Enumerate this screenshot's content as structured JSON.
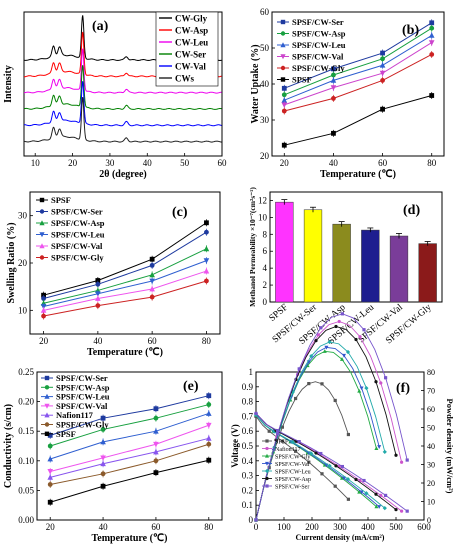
{
  "figure": {
    "chart_data": [
      {
        "id": "a",
        "panel_label": "(a)",
        "type": "line",
        "title": "",
        "xlabel": "2θ (degree)",
        "ylabel": "Intensity",
        "xlim": [
          7,
          60
        ],
        "xticks": [
          10,
          20,
          30,
          40,
          50,
          60
        ],
        "ylim": [
          0,
          7.5
        ],
        "show_y_ticks": false,
        "legend_placement": "top-right",
        "peaks": [
          {
            "x": 14.9,
            "h": 0.55,
            "w": 0.55
          },
          {
            "x": 16.5,
            "h": 0.45,
            "w": 0.6
          },
          {
            "x": 22.7,
            "h": 2.2,
            "w": 0.45
          },
          {
            "x": 34.4,
            "h": 0.18,
            "w": 0.6
          }
        ],
        "series": [
          {
            "name": "CW-Gly",
            "color": "#000000",
            "offset": 5.0
          },
          {
            "name": "CW-Asp",
            "color": "#ff0000",
            "offset": 4.15
          },
          {
            "name": "CW-Leu",
            "color": "#ee00ee",
            "offset": 3.3
          },
          {
            "name": "CW-Ser",
            "color": "#008000",
            "offset": 2.45
          },
          {
            "name": "CW-Val",
            "color": "#0000ff",
            "offset": 1.6
          },
          {
            "name": "CWs",
            "color": "#222222",
            "offset": 0.75
          }
        ]
      },
      {
        "id": "b",
        "panel_label": "(b)",
        "type": "line",
        "xlabel": "Temperature (℃)",
        "ylabel": "Water Uptake (%)",
        "x": [
          20,
          40,
          60,
          80
        ],
        "xlim": [
          15,
          85
        ],
        "xticks": [
          20,
          40,
          60,
          80
        ],
        "ylim": [
          20,
          60
        ],
        "yticks": [
          20,
          30,
          40,
          50,
          60
        ],
        "legend_placement": "top-left",
        "series": [
          {
            "name": "SPSF/CW-Ser",
            "color": "#1e3a9f",
            "marker": "square",
            "values": [
              38.8,
              44.2,
              48.6,
              57.0
            ]
          },
          {
            "name": "SPSF/CW-Asp",
            "color": "#18a040",
            "marker": "circle",
            "values": [
              37.0,
              42.5,
              47.0,
              55.5
            ]
          },
          {
            "name": "SPSF/CW-Leu",
            "color": "#2f5fd0",
            "marker": "triangle",
            "values": [
              35.5,
              41.0,
              45.2,
              53.5
            ]
          },
          {
            "name": "SPSF/CW-Val",
            "color": "#cc44cc",
            "marker": "triangle-down",
            "values": [
              34.2,
              39.0,
              43.0,
              51.5
            ]
          },
          {
            "name": "SPSF/CW-Gly",
            "color": "#cc2222",
            "marker": "circle",
            "values": [
              32.5,
              36.0,
              41.0,
              48.2
            ]
          },
          {
            "name": "SPSF",
            "color": "#000000",
            "marker": "square",
            "values": [
              23.0,
              26.3,
              33.0,
              36.8
            ]
          }
        ]
      },
      {
        "id": "c",
        "panel_label": "(c)",
        "type": "line",
        "xlabel": "Temperature (℃)",
        "ylabel": "Swelling Ratio (%)",
        "x": [
          20,
          40,
          60,
          80
        ],
        "xlim": [
          15,
          85
        ],
        "xticks": [
          20,
          40,
          60,
          80
        ],
        "ylim": [
          5,
          35
        ],
        "yticks": [
          10,
          20,
          30
        ],
        "legend_placement": "top-left",
        "series": [
          {
            "name": "SPSF",
            "color": "#000000",
            "marker": "square",
            "values": [
              13.2,
              16.3,
              20.8,
              28.5
            ]
          },
          {
            "name": "SPSF/CW-Ser",
            "color": "#1e3a9f",
            "marker": "circle",
            "values": [
              12.5,
              15.5,
              19.5,
              26.5
            ]
          },
          {
            "name": "SPSF/CW-Asp",
            "color": "#18a040",
            "marker": "triangle",
            "values": [
              11.5,
              14.2,
              17.5,
              23.0
            ]
          },
          {
            "name": "SPSF/CW-Leu",
            "color": "#2f5fd0",
            "marker": "triangle-down",
            "values": [
              10.8,
              13.5,
              16.2,
              20.5
            ]
          },
          {
            "name": "SPSF/CW-Val",
            "color": "#ee55ee",
            "marker": "triangle",
            "values": [
              10.0,
              12.5,
              14.5,
              18.3
            ]
          },
          {
            "name": "SPSF/CW-Gly",
            "color": "#cc2222",
            "marker": "circle",
            "values": [
              8.8,
              11.0,
              12.8,
              16.2
            ]
          }
        ]
      },
      {
        "id": "d",
        "panel_label": "(d)",
        "type": "bar",
        "ylabel": "Methanol Permeability ×10⁻⁷(cm²s⁻¹)",
        "categories": [
          "SPSF",
          "SPSF/CW-Ser",
          "SPSF/CW-Asp",
          "SPSF/CW-Leu",
          "SPSF/CW-Val",
          "SPSF/CW-Gly"
        ],
        "values": [
          11.8,
          10.9,
          9.2,
          8.5,
          7.8,
          6.9
        ],
        "errors": [
          0.3,
          0.3,
          0.3,
          0.25,
          0.3,
          0.25
        ],
        "colors": [
          "#ff33ff",
          "#ffff00",
          "#8b8b1e",
          "#1e1e8f",
          "#7a3d99",
          "#8b1a1a"
        ],
        "ylim": [
          0,
          13
        ],
        "yticks": [
          0,
          2,
          4,
          6,
          8,
          10,
          12
        ]
      },
      {
        "id": "e",
        "panel_label": "(e)",
        "type": "line",
        "xlabel": "Temperature (℃)",
        "ylabel": "Conductivity (s/cm)",
        "x": [
          20,
          40,
          60,
          80
        ],
        "xlim": [
          15,
          85
        ],
        "xticks": [
          20,
          40,
          60,
          80
        ],
        "ylim": [
          0.0,
          0.25
        ],
        "yticks": [
          0.0,
          0.05,
          0.1,
          0.15,
          0.2,
          0.25
        ],
        "ytick_labels": [
          "0.00",
          "0.05",
          "0.10",
          "0.15",
          "0.20",
          "0.25"
        ],
        "legend_placement": "top-left",
        "series": [
          {
            "name": "SPSF/CW-Ser",
            "color": "#1e3a9f",
            "marker": "square",
            "values": [
              0.143,
              0.172,
              0.188,
              0.21
            ]
          },
          {
            "name": "SPSF/CW-Asp",
            "color": "#18a040",
            "marker": "circle",
            "values": [
              0.125,
              0.153,
              0.172,
              0.195
            ]
          },
          {
            "name": "SPSF/CW-Leu",
            "color": "#2f5fd0",
            "marker": "triangle",
            "values": [
              0.103,
              0.132,
              0.15,
              0.18
            ]
          },
          {
            "name": "SPSF/CW-Val",
            "color": "#ee55ee",
            "marker": "triangle-down",
            "values": [
              0.082,
              0.105,
              0.128,
              0.16
            ]
          },
          {
            "name": "Nafion117",
            "color": "#8855ee",
            "marker": "triangle",
            "values": [
              0.072,
              0.095,
              0.115,
              0.138
            ]
          },
          {
            "name": "SPSF/CW-Gly",
            "color": "#8b5a2b",
            "marker": "circle",
            "values": [
              0.06,
              0.078,
              0.1,
              0.128
            ]
          },
          {
            "name": "SPSF",
            "color": "#000000",
            "marker": "square",
            "values": [
              0.03,
              0.057,
              0.08,
              0.101
            ]
          }
        ]
      },
      {
        "id": "f",
        "panel_label": "(f)",
        "type": "line",
        "xlabel": "Current density (mA/cm²)",
        "ylabel": "Voltage (V)",
        "y2label": "Powder density (mW/cm²)",
        "xlim": [
          0,
          600
        ],
        "xticks": [
          0,
          100,
          200,
          300,
          400,
          500,
          600
        ],
        "ylim": [
          0.0,
          1.0
        ],
        "yticks": [
          0.0,
          0.1,
          0.2,
          0.3,
          0.4,
          0.5,
          0.6,
          0.7,
          0.8,
          0.9,
          1.0
        ],
        "y2lim": [
          0,
          80
        ],
        "y2ticks": [
          0,
          10,
          20,
          30,
          40,
          50,
          60,
          70,
          80
        ],
        "legend_placement": "bottom-left",
        "series": [
          {
            "name": "SPSF",
            "color": "#555555",
            "marker": "square",
            "imax": 330,
            "v0": 0.7,
            "vend": 0.2
          },
          {
            "name": "Nafion117",
            "color": "#cc55cc",
            "marker": "circle",
            "imax": 520,
            "v0": 0.72,
            "vend": 0.12
          },
          {
            "name": "SPSF/CW-Gly",
            "color": "#22aa44",
            "marker": "triangle",
            "imax": 430,
            "v0": 0.71,
            "vend": 0.15
          },
          {
            "name": "SPSF/CW-Val",
            "color": "#3355cc",
            "marker": "triangle-down",
            "imax": 440,
            "v0": 0.71,
            "vend": 0.15
          },
          {
            "name": "SPSF/CW-Leu",
            "color": "#22aaaa",
            "marker": "diamond",
            "imax": 460,
            "v0": 0.71,
            "vend": 0.14
          },
          {
            "name": "SPSF/CW-Asp",
            "color": "#111111",
            "marker": "circle",
            "imax": 500,
            "v0": 0.72,
            "vend": 0.13
          },
          {
            "name": "SPSF/CW-Ser",
            "color": "#7755cc",
            "marker": "square",
            "imax": 540,
            "v0": 0.72,
            "vend": 0.12
          }
        ]
      }
    ]
  }
}
